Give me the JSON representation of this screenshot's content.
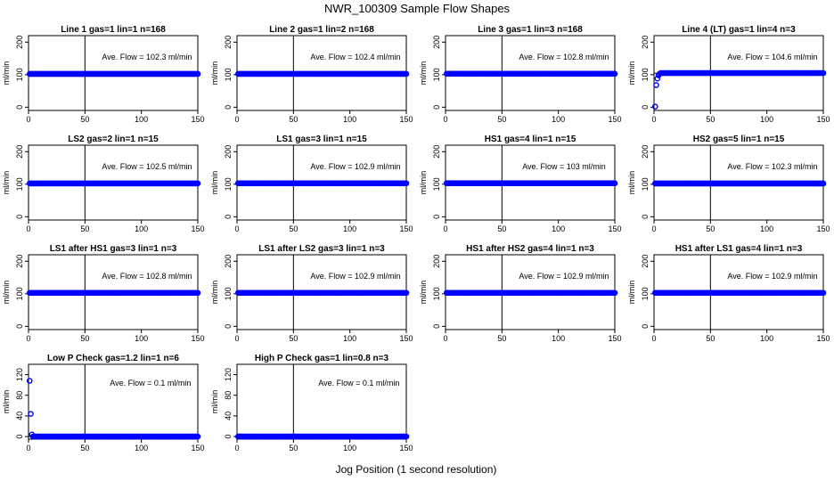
{
  "chart_title": "NWR_100309  Sample Flow Shapes",
  "x_axis_label": "Jog Position (1 second resolution)",
  "chart_data": {
    "type": "scatter",
    "title": "NWR_100309  Sample Flow Shapes",
    "xlabel": "Jog Position (1 second resolution)",
    "grid": false,
    "panels": [
      {
        "title": "Line 1 gas=1 lin=1 n=168",
        "ylabel": "ml/min",
        "xlim": [
          0,
          150
        ],
        "ylim": [
          -10,
          220
        ],
        "x_ticks": [
          "0",
          "50",
          "100",
          "150"
        ],
        "y_ticks": [
          "0",
          "100",
          "200"
        ],
        "vline": 50,
        "hline": 102.3,
        "annotation": "Ave. Flow =  102.3  ml/min",
        "marker_color": "#0000ff",
        "points": [],
        "flat": {
          "x_start": 1,
          "x_end": 150,
          "y": 102.3
        }
      },
      {
        "title": "Line 2 gas=1 lin=2 n=168",
        "ylabel": "ml/min",
        "xlim": [
          0,
          150
        ],
        "ylim": [
          -10,
          220
        ],
        "x_ticks": [
          "0",
          "50",
          "100",
          "150"
        ],
        "y_ticks": [
          "0",
          "100",
          "200"
        ],
        "vline": 50,
        "hline": 102.4,
        "annotation": "Ave. Flow =  102.4  ml/min",
        "marker_color": "#0000ff",
        "points": [],
        "flat": {
          "x_start": 1,
          "x_end": 150,
          "y": 102.4
        }
      },
      {
        "title": "Line 3 gas=1 lin=3 n=168",
        "ylabel": "ml/min",
        "xlim": [
          0,
          150
        ],
        "ylim": [
          -10,
          220
        ],
        "x_ticks": [
          "0",
          "50",
          "100",
          "150"
        ],
        "y_ticks": [
          "0",
          "100",
          "200"
        ],
        "vline": 50,
        "hline": 102.8,
        "annotation": "Ave. Flow =  102.8  ml/min",
        "marker_color": "#0000ff",
        "points": [],
        "flat": {
          "x_start": 1,
          "x_end": 150,
          "y": 102.8
        }
      },
      {
        "title": "Line 4 (LT) gas=1 lin=4 n=3",
        "ylabel": "ml/min",
        "xlim": [
          0,
          150
        ],
        "ylim": [
          -10,
          220
        ],
        "x_ticks": [
          "0",
          "50",
          "100",
          "150"
        ],
        "y_ticks": [
          "0",
          "100",
          "200"
        ],
        "vline": 50,
        "hline": 104.6,
        "annotation": "Ave. Flow =  104.6  ml/min",
        "marker_color": "#0000ff",
        "points": [
          [
            1,
            2
          ],
          [
            2,
            68
          ],
          [
            3,
            88
          ],
          [
            4,
            98
          ],
          [
            5,
            103
          ]
        ],
        "flat": {
          "x_start": 6,
          "x_end": 150,
          "y": 105
        }
      },
      {
        "title": "LS2 gas=2 lin=1 n=15",
        "ylabel": "ml/min",
        "xlim": [
          0,
          150
        ],
        "ylim": [
          -10,
          220
        ],
        "x_ticks": [
          "0",
          "50",
          "100",
          "150"
        ],
        "y_ticks": [
          "0",
          "100",
          "200"
        ],
        "vline": 50,
        "hline": 102.5,
        "annotation": "Ave. Flow =  102.5  ml/min",
        "marker_color": "#0000ff",
        "points": [],
        "flat": {
          "x_start": 1,
          "x_end": 150,
          "y": 102.5
        }
      },
      {
        "title": "LS1 gas=3 lin=1 n=15",
        "ylabel": "ml/min",
        "xlim": [
          0,
          150
        ],
        "ylim": [
          -10,
          220
        ],
        "x_ticks": [
          "0",
          "50",
          "100",
          "150"
        ],
        "y_ticks": [
          "0",
          "100",
          "200"
        ],
        "vline": 50,
        "hline": 102.9,
        "annotation": "Ave. Flow =  102.9  ml/min",
        "marker_color": "#0000ff",
        "points": [],
        "flat": {
          "x_start": 1,
          "x_end": 150,
          "y": 102.9
        }
      },
      {
        "title": "HS1 gas=4 lin=1 n=15",
        "ylabel": "ml/min",
        "xlim": [
          0,
          150
        ],
        "ylim": [
          -10,
          220
        ],
        "x_ticks": [
          "0",
          "50",
          "100",
          "150"
        ],
        "y_ticks": [
          "0",
          "100",
          "200"
        ],
        "vline": 50,
        "hline": 103,
        "annotation": "Ave. Flow =  103  ml/min",
        "marker_color": "#0000ff",
        "points": [],
        "flat": {
          "x_start": 1,
          "x_end": 150,
          "y": 103
        }
      },
      {
        "title": "HS2 gas=5 lin=1 n=15",
        "ylabel": "ml/min",
        "xlim": [
          0,
          150
        ],
        "ylim": [
          -10,
          220
        ],
        "x_ticks": [
          "0",
          "50",
          "100",
          "150"
        ],
        "y_ticks": [
          "0",
          "100",
          "200"
        ],
        "vline": 50,
        "hline": 102.3,
        "annotation": "Ave. Flow =  102.3  ml/min",
        "marker_color": "#0000ff",
        "points": [],
        "flat": {
          "x_start": 1,
          "x_end": 150,
          "y": 102.3
        }
      },
      {
        "title": "LS1 after HS1 gas=3 lin=1 n=3",
        "ylabel": "ml/min",
        "xlim": [
          0,
          150
        ],
        "ylim": [
          -10,
          220
        ],
        "x_ticks": [
          "0",
          "50",
          "100",
          "150"
        ],
        "y_ticks": [
          "0",
          "100",
          "200"
        ],
        "vline": 50,
        "hline": 102.8,
        "annotation": "Ave. Flow =  102.8  ml/min",
        "marker_color": "#0000ff",
        "points": [],
        "flat": {
          "x_start": 1,
          "x_end": 150,
          "y": 102.8
        }
      },
      {
        "title": "LS1 after LS2 gas=3 lin=1 n=3",
        "ylabel": "ml/min",
        "xlim": [
          0,
          150
        ],
        "ylim": [
          -10,
          220
        ],
        "x_ticks": [
          "0",
          "50",
          "100",
          "150"
        ],
        "y_ticks": [
          "0",
          "100",
          "200"
        ],
        "vline": 50,
        "hline": 102.9,
        "annotation": "Ave. Flow =  102.9  ml/min",
        "marker_color": "#0000ff",
        "points": [],
        "flat": {
          "x_start": 1,
          "x_end": 150,
          "y": 102.9
        }
      },
      {
        "title": "HS1 after HS2 gas=4 lin=1 n=3",
        "ylabel": "ml/min",
        "xlim": [
          0,
          150
        ],
        "ylim": [
          -10,
          220
        ],
        "x_ticks": [
          "0",
          "50",
          "100",
          "150"
        ],
        "y_ticks": [
          "0",
          "100",
          "200"
        ],
        "vline": 50,
        "hline": 102.9,
        "annotation": "Ave. Flow =  102.9  ml/min",
        "marker_color": "#0000ff",
        "points": [],
        "flat": {
          "x_start": 1,
          "x_end": 150,
          "y": 102.9
        }
      },
      {
        "title": "HS1 after LS1 gas=4 lin=1 n=3",
        "ylabel": "ml/min",
        "xlim": [
          0,
          150
        ],
        "ylim": [
          -10,
          220
        ],
        "x_ticks": [
          "0",
          "50",
          "100",
          "150"
        ],
        "y_ticks": [
          "0",
          "100",
          "200"
        ],
        "vline": 50,
        "hline": 102.9,
        "annotation": "Ave. Flow =  102.9  ml/min",
        "marker_color": "#0000ff",
        "points": [],
        "flat": {
          "x_start": 1,
          "x_end": 150,
          "y": 102.9
        }
      },
      {
        "title": "Low P Check gas=1.2 lin=1 n=6",
        "ylabel": "ml/min",
        "xlim": [
          0,
          150
        ],
        "ylim": [
          -5,
          140
        ],
        "x_ticks": [
          "0",
          "50",
          "100",
          "150"
        ],
        "y_ticks": [
          "0",
          "40",
          "80",
          "120"
        ],
        "vline": 50,
        "hline": 0.1,
        "annotation": "Ave. Flow =  0.1  ml/min",
        "marker_color": "#0000ff",
        "points": [
          [
            1,
            108
          ],
          [
            2,
            44
          ],
          [
            3,
            4
          ]
        ],
        "flat": {
          "x_start": 4,
          "x_end": 150,
          "y": 0
        }
      },
      {
        "title": "High P Check gas=1 lin=0.8 n=3",
        "ylabel": "ml/min",
        "xlim": [
          0,
          150
        ],
        "ylim": [
          -5,
          140
        ],
        "x_ticks": [
          "0",
          "50",
          "100",
          "150"
        ],
        "y_ticks": [
          "0",
          "40",
          "80",
          "120"
        ],
        "vline": 50,
        "hline": 0.1,
        "annotation": "Ave. Flow =  0.1  ml/min",
        "marker_color": "#0000ff",
        "points": [],
        "flat": {
          "x_start": 1,
          "x_end": 150,
          "y": 0
        }
      }
    ]
  }
}
